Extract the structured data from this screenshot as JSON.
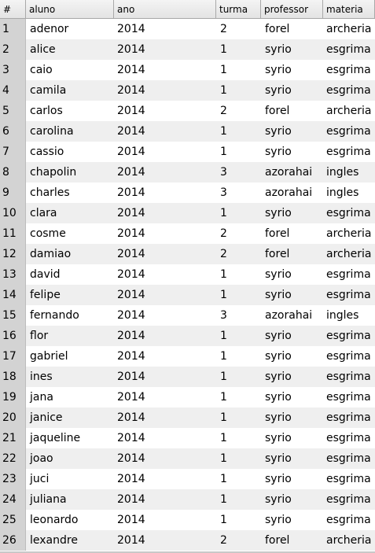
{
  "table": {
    "columns": [
      "#",
      "aluno",
      "ano",
      "turma",
      "professor",
      "materia"
    ],
    "rows": [
      [
        "1",
        "adenor",
        "2014",
        "2",
        "forel",
        "archeria"
      ],
      [
        "2",
        "alice",
        "2014",
        "1",
        "syrio",
        "esgrima"
      ],
      [
        "3",
        "caio",
        "2014",
        "1",
        "syrio",
        "esgrima"
      ],
      [
        "4",
        "camila",
        "2014",
        "1",
        "syrio",
        "esgrima"
      ],
      [
        "5",
        "carlos",
        "2014",
        "2",
        "forel",
        "archeria"
      ],
      [
        "6",
        "carolina",
        "2014",
        "1",
        "syrio",
        "esgrima"
      ],
      [
        "7",
        "cassio",
        "2014",
        "1",
        "syrio",
        "esgrima"
      ],
      [
        "8",
        "chapolin",
        "2014",
        "3",
        "azorahai",
        "ingles"
      ],
      [
        "9",
        "charles",
        "2014",
        "3",
        "azorahai",
        "ingles"
      ],
      [
        "10",
        "clara",
        "2014",
        "1",
        "syrio",
        "esgrima"
      ],
      [
        "11",
        "cosme",
        "2014",
        "2",
        "forel",
        "archeria"
      ],
      [
        "12",
        "damiao",
        "2014",
        "2",
        "forel",
        "archeria"
      ],
      [
        "13",
        "david",
        "2014",
        "1",
        "syrio",
        "esgrima"
      ],
      [
        "14",
        "felipe",
        "2014",
        "1",
        "syrio",
        "esgrima"
      ],
      [
        "15",
        "fernando",
        "2014",
        "3",
        "azorahai",
        "ingles"
      ],
      [
        "16",
        "flor",
        "2014",
        "1",
        "syrio",
        "esgrima"
      ],
      [
        "17",
        "gabriel",
        "2014",
        "1",
        "syrio",
        "esgrima"
      ],
      [
        "18",
        "ines",
        "2014",
        "1",
        "syrio",
        "esgrima"
      ],
      [
        "19",
        "jana",
        "2014",
        "1",
        "syrio",
        "esgrima"
      ],
      [
        "20",
        "janice",
        "2014",
        "1",
        "syrio",
        "esgrima"
      ],
      [
        "21",
        "jaqueline",
        "2014",
        "1",
        "syrio",
        "esgrima"
      ],
      [
        "22",
        "joao",
        "2014",
        "1",
        "syrio",
        "esgrima"
      ],
      [
        "23",
        "juci",
        "2014",
        "1",
        "syrio",
        "esgrima"
      ],
      [
        "24",
        "juliana",
        "2014",
        "1",
        "syrio",
        "esgrima"
      ],
      [
        "25",
        "leonardo",
        "2014",
        "1",
        "syrio",
        "esgrima"
      ],
      [
        "26",
        "lexandre",
        "2014",
        "2",
        "forel",
        "archeria"
      ]
    ]
  }
}
